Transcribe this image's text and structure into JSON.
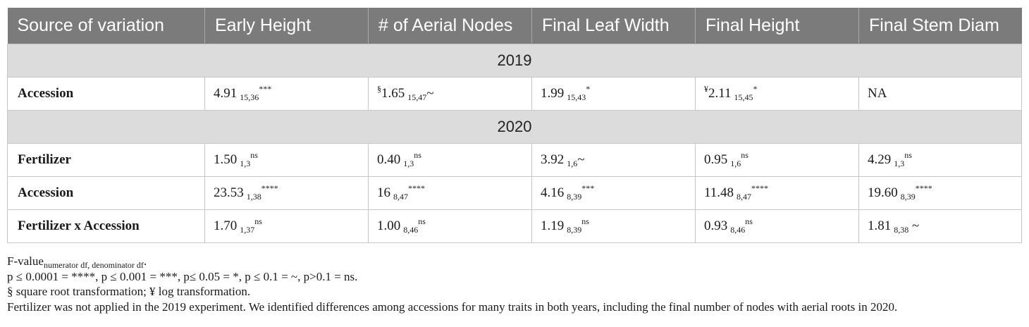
{
  "table": {
    "headers": [
      "Source of variation",
      "Early Height",
      "# of Aerial Nodes",
      "Final Leaf Width",
      "Final Height",
      "Final Stem Diam"
    ],
    "sections": [
      {
        "year": "2019",
        "rows": [
          {
            "label": "Accession",
            "cells": [
              {
                "pre": "",
                "value": "4.91",
                "sub": "15,36",
                "sup": "***",
                "post": ""
              },
              {
                "pre": "§",
                "value": "1.65",
                "sub": "15,47",
                "sup": "",
                "post": "~"
              },
              {
                "pre": "",
                "value": "1.99",
                "sub": "15,43",
                "sup": "*",
                "post": ""
              },
              {
                "pre": "¥",
                "value": "2.11",
                "sub": "15,45",
                "sup": "*",
                "post": ""
              },
              {
                "pre": "",
                "value": "NA",
                "sub": "",
                "sup": "",
                "post": ""
              }
            ]
          }
        ]
      },
      {
        "year": "2020",
        "rows": [
          {
            "label": "Fertilizer",
            "cells": [
              {
                "pre": "",
                "value": "1.50",
                "sub": "1,3",
                "sup": "ns",
                "post": ""
              },
              {
                "pre": "",
                "value": "0.40",
                "sub": "1,3",
                "sup": "ns",
                "post": ""
              },
              {
                "pre": "",
                "value": "3.92",
                "sub": "1,6",
                "sup": "",
                "post": "~"
              },
              {
                "pre": "",
                "value": "0.95",
                "sub": "1,6",
                "sup": "ns",
                "post": ""
              },
              {
                "pre": "",
                "value": "4.29",
                "sub": "1,3",
                "sup": "ns",
                "post": ""
              }
            ]
          },
          {
            "label": "Accession",
            "cells": [
              {
                "pre": "",
                "value": "23.53",
                "sub": "1,38",
                "sup": "****",
                "post": ""
              },
              {
                "pre": "",
                "value": "16",
                "sub": "8,47",
                "sup": "****",
                "post": ""
              },
              {
                "pre": "",
                "value": "4.16",
                "sub": "8,39",
                "sup": "***",
                "post": ""
              },
              {
                "pre": "",
                "value": "11.48",
                "sub": "8,47",
                "sup": "****",
                "post": ""
              },
              {
                "pre": "",
                "value": "19.60",
                "sub": "8,39",
                "sup": "****",
                "post": ""
              }
            ]
          },
          {
            "label": "Fertilizer x Accession",
            "cells": [
              {
                "pre": "",
                "value": "1.70",
                "sub": "1,37",
                "sup": "ns",
                "post": ""
              },
              {
                "pre": "",
                "value": "1.00",
                "sub": "8,46",
                "sup": "ns",
                "post": ""
              },
              {
                "pre": "",
                "value": "1.19",
                "sub": "8,39",
                "sup": "ns",
                "post": ""
              },
              {
                "pre": "",
                "value": "0.93",
                "sub": "8,46",
                "sup": "ns",
                "post": ""
              },
              {
                "pre": "",
                "value": "1.81",
                "sub": "8,38",
                "sup": "",
                "post": " ~"
              }
            ]
          }
        ]
      }
    ]
  },
  "notes": {
    "line1_main": "F-value",
    "line1_sub": "numerator df, denominator df",
    "line1_end": ".",
    "line2": "p ≤ 0.0001 = ****, p ≤ 0.001 = ***, p≤ 0.05 = *, p ≤ 0.1 = ~, p>0.1 = ns.",
    "line3": "§ square root transformation; ¥ log transformation.",
    "line4": "Fertilizer was not applied in the 2019 experiment. We identified differences among accessions for many traits in both years, including the final number of nodes with aerial roots in 2020."
  },
  "colors": {
    "header_bg": "#7b7b7b",
    "year_row_bg": "#dcdcdc",
    "grid": "#c8c8c8"
  }
}
